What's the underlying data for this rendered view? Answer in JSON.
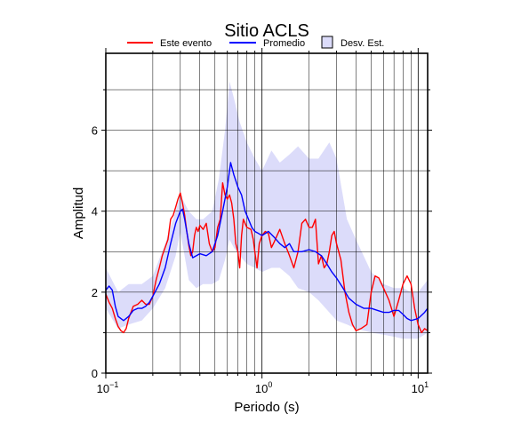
{
  "chart_data": {
    "type": "line",
    "title": "Sitio ACLS",
    "xlabel": "Periodo (s)",
    "ylabel": "Amplitud",
    "x_scale": "log",
    "xlim": [
      0.1,
      11.5
    ],
    "ylim": [
      0,
      7.9
    ],
    "grid": true,
    "legend_position": "top",
    "x_ticks": [
      {
        "value": 0.1,
        "base": "10",
        "exp": "−1"
      },
      {
        "value": 1,
        "base": "10",
        "exp": "0"
      },
      {
        "value": 10,
        "base": "10",
        "exp": "1"
      }
    ],
    "y_ticks": [
      0,
      2,
      4,
      6
    ],
    "legend": [
      {
        "label": "Este evento",
        "kind": "line",
        "color": "#ff0000"
      },
      {
        "label": "Promedio",
        "kind": "line",
        "color": "#0000ff"
      },
      {
        "label": "Desv. Est.",
        "kind": "band",
        "color": "#dcdcfa"
      }
    ],
    "series": [
      {
        "name": "Este evento",
        "color": "#ff0000",
        "points": [
          [
            0.1,
            1.95
          ],
          [
            0.105,
            1.75
          ],
          [
            0.11,
            1.6
          ],
          [
            0.115,
            1.35
          ],
          [
            0.12,
            1.15
          ],
          [
            0.125,
            1.05
          ],
          [
            0.13,
            1.0
          ],
          [
            0.135,
            1.1
          ],
          [
            0.14,
            1.35
          ],
          [
            0.15,
            1.65
          ],
          [
            0.16,
            1.7
          ],
          [
            0.17,
            1.8
          ],
          [
            0.18,
            1.7
          ],
          [
            0.19,
            1.7
          ],
          [
            0.2,
            1.9
          ],
          [
            0.21,
            2.3
          ],
          [
            0.22,
            2.6
          ],
          [
            0.23,
            2.9
          ],
          [
            0.25,
            3.3
          ],
          [
            0.26,
            3.8
          ],
          [
            0.27,
            3.9
          ],
          [
            0.28,
            4.1
          ],
          [
            0.29,
            4.3
          ],
          [
            0.3,
            4.45
          ],
          [
            0.31,
            4.2
          ],
          [
            0.32,
            3.9
          ],
          [
            0.33,
            3.5
          ],
          [
            0.34,
            3.15
          ],
          [
            0.35,
            2.9
          ],
          [
            0.36,
            3.0
          ],
          [
            0.37,
            3.4
          ],
          [
            0.38,
            3.6
          ],
          [
            0.39,
            3.5
          ],
          [
            0.4,
            3.65
          ],
          [
            0.42,
            3.55
          ],
          [
            0.44,
            3.7
          ],
          [
            0.46,
            3.2
          ],
          [
            0.48,
            3.0
          ],
          [
            0.5,
            3.1
          ],
          [
            0.52,
            3.6
          ],
          [
            0.54,
            3.8
          ],
          [
            0.56,
            4.7
          ],
          [
            0.58,
            4.4
          ],
          [
            0.6,
            4.3
          ],
          [
            0.62,
            4.4
          ],
          [
            0.64,
            4.2
          ],
          [
            0.66,
            3.8
          ],
          [
            0.68,
            3.2
          ],
          [
            0.7,
            3.0
          ],
          [
            0.72,
            2.6
          ],
          [
            0.74,
            3.4
          ],
          [
            0.76,
            3.8
          ],
          [
            0.8,
            3.6
          ],
          [
            0.85,
            3.55
          ],
          [
            0.88,
            3.3
          ],
          [
            0.9,
            3.0
          ],
          [
            0.93,
            2.6
          ],
          [
            0.96,
            3.2
          ],
          [
            1.0,
            3.4
          ],
          [
            1.05,
            3.5
          ],
          [
            1.1,
            3.45
          ],
          [
            1.15,
            3.1
          ],
          [
            1.2,
            3.25
          ],
          [
            1.3,
            3.55
          ],
          [
            1.4,
            3.2
          ],
          [
            1.5,
            2.9
          ],
          [
            1.6,
            2.6
          ],
          [
            1.7,
            3.0
          ],
          [
            1.8,
            3.7
          ],
          [
            1.9,
            3.8
          ],
          [
            2.0,
            3.6
          ],
          [
            2.1,
            3.6
          ],
          [
            2.2,
            3.8
          ],
          [
            2.3,
            2.7
          ],
          [
            2.4,
            2.9
          ],
          [
            2.5,
            2.6
          ],
          [
            2.6,
            2.7
          ],
          [
            2.7,
            3.0
          ],
          [
            2.8,
            3.4
          ],
          [
            2.9,
            3.5
          ],
          [
            3.0,
            3.2
          ],
          [
            3.2,
            2.8
          ],
          [
            3.4,
            2.0
          ],
          [
            3.6,
            1.5
          ],
          [
            3.8,
            1.2
          ],
          [
            4.0,
            1.05
          ],
          [
            4.3,
            1.1
          ],
          [
            4.7,
            1.2
          ],
          [
            5.0,
            2.0
          ],
          [
            5.3,
            2.4
          ],
          [
            5.6,
            2.35
          ],
          [
            6.0,
            2.1
          ],
          [
            6.5,
            1.8
          ],
          [
            7.0,
            1.4
          ],
          [
            7.5,
            1.8
          ],
          [
            8.0,
            2.2
          ],
          [
            8.5,
            2.4
          ],
          [
            9.0,
            2.2
          ],
          [
            9.5,
            1.6
          ],
          [
            10.0,
            1.2
          ],
          [
            10.5,
            1.0
          ],
          [
            11.0,
            1.1
          ],
          [
            11.5,
            1.05
          ]
        ]
      },
      {
        "name": "Promedio",
        "color": "#0000ff",
        "points": [
          [
            0.1,
            2.05
          ],
          [
            0.105,
            2.15
          ],
          [
            0.11,
            2.05
          ],
          [
            0.115,
            1.65
          ],
          [
            0.12,
            1.4
          ],
          [
            0.13,
            1.3
          ],
          [
            0.14,
            1.4
          ],
          [
            0.15,
            1.55
          ],
          [
            0.16,
            1.6
          ],
          [
            0.17,
            1.6
          ],
          [
            0.18,
            1.65
          ],
          [
            0.19,
            1.75
          ],
          [
            0.2,
            1.9
          ],
          [
            0.22,
            2.2
          ],
          [
            0.24,
            2.6
          ],
          [
            0.26,
            3.2
          ],
          [
            0.28,
            3.7
          ],
          [
            0.3,
            4.0
          ],
          [
            0.31,
            4.05
          ],
          [
            0.32,
            3.8
          ],
          [
            0.34,
            3.2
          ],
          [
            0.36,
            2.85
          ],
          [
            0.4,
            2.95
          ],
          [
            0.44,
            2.9
          ],
          [
            0.48,
            3.0
          ],
          [
            0.52,
            3.4
          ],
          [
            0.56,
            4.0
          ],
          [
            0.6,
            4.6
          ],
          [
            0.63,
            5.2
          ],
          [
            0.66,
            4.9
          ],
          [
            0.7,
            4.6
          ],
          [
            0.74,
            4.4
          ],
          [
            0.78,
            4.0
          ],
          [
            0.82,
            3.8
          ],
          [
            0.86,
            3.6
          ],
          [
            0.9,
            3.5
          ],
          [
            0.95,
            3.45
          ],
          [
            1.0,
            3.4
          ],
          [
            1.1,
            3.5
          ],
          [
            1.2,
            3.35
          ],
          [
            1.3,
            3.2
          ],
          [
            1.4,
            3.1
          ],
          [
            1.5,
            3.2
          ],
          [
            1.6,
            3.0
          ],
          [
            1.8,
            3.0
          ],
          [
            2.0,
            3.05
          ],
          [
            2.2,
            3.0
          ],
          [
            2.4,
            2.9
          ],
          [
            2.6,
            2.7
          ],
          [
            2.8,
            2.5
          ],
          [
            3.0,
            2.35
          ],
          [
            3.3,
            2.1
          ],
          [
            3.6,
            1.85
          ],
          [
            4.0,
            1.7
          ],
          [
            4.5,
            1.6
          ],
          [
            5.0,
            1.6
          ],
          [
            5.5,
            1.55
          ],
          [
            6.0,
            1.5
          ],
          [
            6.5,
            1.5
          ],
          [
            7.0,
            1.55
          ],
          [
            7.5,
            1.55
          ],
          [
            8.0,
            1.45
          ],
          [
            8.5,
            1.35
          ],
          [
            9.0,
            1.3
          ],
          [
            10.0,
            1.35
          ],
          [
            11.0,
            1.5
          ],
          [
            11.5,
            1.6
          ]
        ]
      }
    ],
    "std_band": {
      "name": "Desv. Est.",
      "color": "#dcdcfa",
      "x": [
        0.1,
        0.12,
        0.14,
        0.17,
        0.2,
        0.24,
        0.28,
        0.3,
        0.34,
        0.38,
        0.42,
        0.48,
        0.53,
        0.58,
        0.62,
        0.66,
        0.72,
        0.8,
        0.9,
        1.0,
        1.15,
        1.3,
        1.5,
        1.7,
        2.0,
        2.3,
        2.7,
        3.0,
        3.5,
        4.0,
        5.0,
        6.0,
        7.0,
        8.0,
        9.0,
        10.0,
        11.5
      ],
      "upper": [
        2.6,
        2.0,
        2.2,
        2.2,
        2.4,
        3.2,
        4.0,
        4.4,
        4.0,
        3.8,
        3.8,
        4.0,
        4.8,
        6.0,
        7.2,
        6.8,
        6.2,
        5.7,
        5.3,
        5.0,
        5.5,
        5.2,
        5.4,
        5.6,
        5.3,
        5.3,
        5.7,
        5.3,
        3.8,
        3.3,
        2.5,
        2.2,
        2.1,
        2.1,
        2.0,
        2.0,
        2.3
      ],
      "lower": [
        1.6,
        1.1,
        1.2,
        1.3,
        1.6,
        2.1,
        2.9,
        3.5,
        2.3,
        2.1,
        2.2,
        2.2,
        2.3,
        2.8,
        3.3,
        3.1,
        2.9,
        2.7,
        2.6,
        2.5,
        2.6,
        2.6,
        2.4,
        2.1,
        2.0,
        1.8,
        1.5,
        1.3,
        1.2,
        1.1,
        1.0,
        0.95,
        0.9,
        0.85,
        0.85,
        0.85,
        1.0
      ]
    }
  }
}
